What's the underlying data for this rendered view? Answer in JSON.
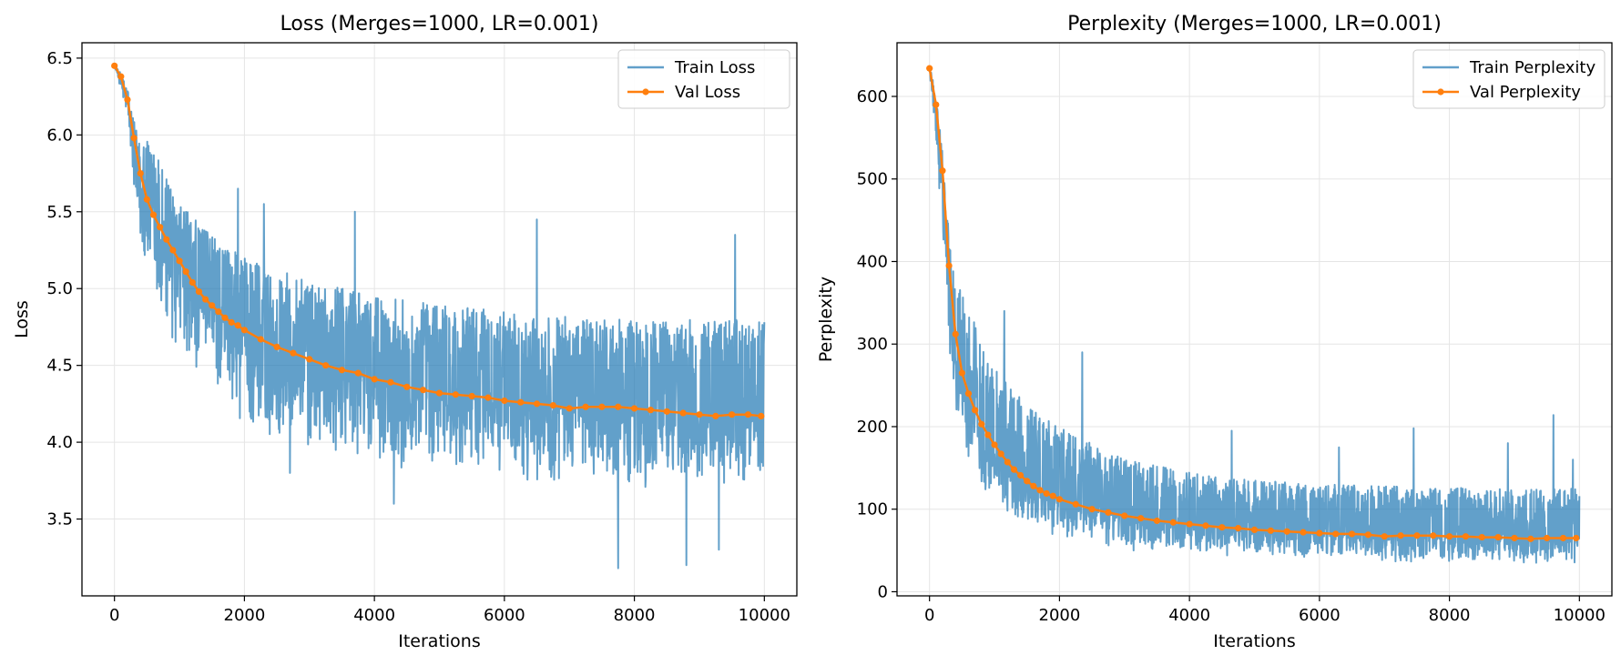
{
  "colors": {
    "train": "#1f77b4",
    "val": "#ff7f0e",
    "grid": "#e5e5e5"
  },
  "chart_data": [
    {
      "type": "line",
      "title": "Loss (Merges=1000, LR=0.001)",
      "xlabel": "Iterations",
      "ylabel": "Loss",
      "xlim": [
        -500,
        10500
      ],
      "ylim": [
        3.0,
        6.6
      ],
      "xticks": [
        0,
        2000,
        4000,
        6000,
        8000,
        10000
      ],
      "xtick_labels": [
        "0",
        "2000",
        "4000",
        "6000",
        "8000",
        "10000"
      ],
      "yticks": [
        3.5,
        4.0,
        4.5,
        5.0,
        5.5,
        6.0,
        6.5
      ],
      "ytick_labels": [
        "3.5",
        "4.0",
        "4.5",
        "5.0",
        "5.5",
        "6.0",
        "6.5"
      ],
      "grid": true,
      "legend": "top-right",
      "series": [
        {
          "name": "Train Loss",
          "style": "noisy-band",
          "x": [
            0,
            100,
            200,
            300,
            400,
            600,
            800,
            1000,
            1500,
            2000,
            3000,
            4000,
            5000,
            6000,
            7000,
            8000,
            9000,
            10000
          ],
          "mean": [
            6.45,
            6.35,
            6.2,
            5.9,
            5.65,
            5.45,
            5.3,
            5.15,
            4.9,
            4.7,
            4.5,
            4.4,
            4.33,
            4.28,
            4.24,
            4.2,
            4.18,
            4.17
          ],
          "low": [
            6.43,
            6.3,
            6.05,
            5.6,
            5.2,
            4.95,
            4.75,
            4.55,
            4.3,
            4.1,
            3.95,
            3.85,
            3.8,
            3.75,
            3.72,
            3.7,
            3.7,
            3.7
          ],
          "high": [
            6.47,
            6.4,
            6.3,
            6.1,
            6.0,
            5.95,
            5.75,
            5.55,
            5.35,
            5.2,
            5.05,
            4.95,
            4.9,
            4.85,
            4.82,
            4.8,
            4.8,
            4.8
          ],
          "spikes": [
            [
              1900,
              5.65
            ],
            [
              2300,
              5.55
            ],
            [
              3700,
              5.5
            ],
            [
              6500,
              5.45
            ],
            [
              9550,
              5.35
            ],
            [
              7750,
              3.18
            ],
            [
              8800,
              3.2
            ],
            [
              2700,
              3.8
            ],
            [
              4300,
              3.6
            ],
            [
              9300,
              3.3
            ]
          ]
        },
        {
          "name": "Val Loss",
          "style": "line-markers",
          "x": [
            0,
            100,
            200,
            300,
            400,
            500,
            600,
            700,
            800,
            900,
            1000,
            1100,
            1200,
            1300,
            1400,
            1500,
            1600,
            1700,
            1800,
            1900,
            2000,
            2250,
            2500,
            2750,
            3000,
            3250,
            3500,
            3750,
            4000,
            4250,
            4500,
            4750,
            5000,
            5250,
            5500,
            5750,
            6000,
            6250,
            6500,
            6750,
            7000,
            7250,
            7500,
            7750,
            8000,
            8250,
            8500,
            8750,
            9000,
            9250,
            9500,
            9750,
            9950
          ],
          "y": [
            6.45,
            6.38,
            6.23,
            5.98,
            5.75,
            5.58,
            5.48,
            5.4,
            5.32,
            5.25,
            5.18,
            5.11,
            5.04,
            4.98,
            4.93,
            4.89,
            4.85,
            4.81,
            4.78,
            4.76,
            4.73,
            4.67,
            4.62,
            4.58,
            4.54,
            4.5,
            4.47,
            4.45,
            4.41,
            4.39,
            4.36,
            4.34,
            4.32,
            4.31,
            4.3,
            4.29,
            4.27,
            4.26,
            4.25,
            4.24,
            4.22,
            4.23,
            4.23,
            4.23,
            4.22,
            4.21,
            4.2,
            4.19,
            4.18,
            4.17,
            4.18,
            4.18,
            4.17
          ]
        }
      ]
    },
    {
      "type": "line",
      "title": "Perplexity (Merges=1000, LR=0.001)",
      "xlabel": "Iterations",
      "ylabel": "Perplexity",
      "xlim": [
        -500,
        10500
      ],
      "ylim": [
        -5,
        665
      ],
      "xticks": [
        0,
        2000,
        4000,
        6000,
        8000,
        10000
      ],
      "xtick_labels": [
        "0",
        "2000",
        "4000",
        "6000",
        "8000",
        "10000"
      ],
      "yticks": [
        0,
        100,
        200,
        300,
        400,
        500,
        600
      ],
      "ytick_labels": [
        "0",
        "100",
        "200",
        "300",
        "400",
        "500",
        "600"
      ],
      "grid": true,
      "legend": "top-right",
      "series": [
        {
          "name": "Train Perplexity",
          "style": "noisy-band",
          "x": [
            0,
            100,
            200,
            300,
            400,
            600,
            800,
            1000,
            1500,
            2000,
            3000,
            4000,
            5000,
            6000,
            7000,
            8000,
            9000,
            10000
          ],
          "mean": [
            632,
            575,
            490,
            370,
            285,
            232,
            200,
            172,
            135,
            112,
            90,
            81,
            75,
            72,
            69,
            67,
            65,
            65
          ],
          "low": [
            625,
            545,
            420,
            300,
            215,
            160,
            130,
            105,
            80,
            65,
            50,
            44,
            40,
            38,
            36,
            35,
            34,
            34
          ],
          "high": [
            640,
            600,
            540,
            430,
            380,
            350,
            300,
            270,
            225,
            200,
            160,
            145,
            135,
            130,
            128,
            126,
            125,
            125
          ],
          "spikes": [
            [
              1150,
              340
            ],
            [
              2350,
              290
            ],
            [
              4650,
              195
            ],
            [
              7450,
              198
            ],
            [
              8900,
              180
            ],
            [
              9600,
              214
            ],
            [
              9900,
              160
            ],
            [
              6300,
              175
            ]
          ]
        },
        {
          "name": "Val Perplexity",
          "style": "line-markers",
          "x": [
            0,
            100,
            200,
            300,
            400,
            500,
            600,
            700,
            800,
            900,
            1000,
            1100,
            1200,
            1300,
            1400,
            1500,
            1600,
            1700,
            1800,
            1900,
            2000,
            2250,
            2500,
            2750,
            3000,
            3250,
            3500,
            3750,
            4000,
            4250,
            4500,
            4750,
            5000,
            5250,
            5500,
            5750,
            6000,
            6250,
            6500,
            6750,
            7000,
            7250,
            7500,
            7750,
            8000,
            8250,
            8500,
            8750,
            9000,
            9250,
            9500,
            9750,
            9950
          ],
          "y": [
            634,
            590,
            510,
            395,
            312,
            265,
            240,
            220,
            203,
            190,
            178,
            167,
            157,
            148,
            141,
            134,
            128,
            123,
            119,
            116,
            112,
            106,
            100,
            96,
            92,
            89,
            86,
            84,
            82,
            80,
            78,
            77,
            75,
            74,
            73,
            72,
            71,
            70,
            70,
            69,
            67,
            68,
            68,
            68,
            67,
            67,
            66,
            66,
            65,
            64,
            65,
            65,
            65
          ]
        }
      ]
    }
  ]
}
